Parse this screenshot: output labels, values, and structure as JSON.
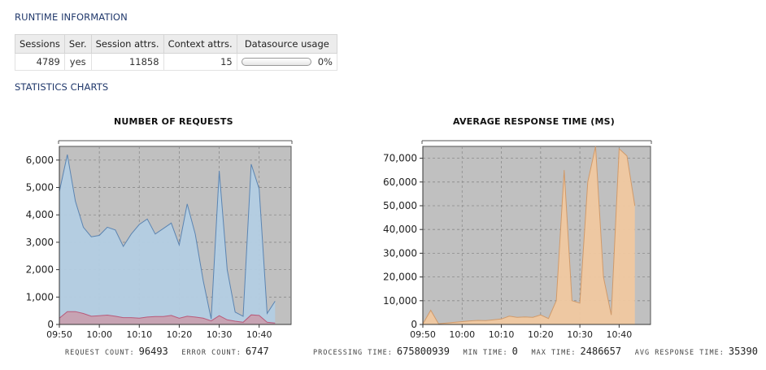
{
  "runtime": {
    "title": "RUNTIME INFORMATION",
    "headers": [
      "Sessions",
      "Ser.",
      "Session attrs.",
      "Context attrs.",
      "Datasource usage"
    ],
    "sessions": "4789",
    "serializable": "yes",
    "session_attrs": "11858",
    "context_attrs": "15",
    "datasource_usage": 0,
    "datasource_usage_label": "0%"
  },
  "statistics": {
    "title": "STATISTICS CHARTS"
  },
  "colors": {
    "section_title": "#20386b",
    "plot_bg": "#c0c0c0",
    "requests_fill": "#b3cde3",
    "requests_line": "#5b84b1",
    "errors_fill": "#c8a0b0",
    "errors_line": "#b85a7a",
    "response_fill": "#f0c8a0",
    "response_line": "#d09a6a"
  },
  "chart_data": [
    {
      "type": "area",
      "title": "NUMBER OF REQUESTS",
      "x_ticks": [
        "09:50",
        "10:00",
        "10:10",
        "10:20",
        "10:30",
        "10:40"
      ],
      "y_ticks": [
        "0",
        "1,000",
        "2,000",
        "3,000",
        "4,000",
        "5,000",
        "6,000"
      ],
      "ylim": [
        0,
        6500
      ],
      "xlim": [
        0,
        58
      ],
      "grid": true,
      "series": [
        {
          "values": [
            [
              0,
              4850
            ],
            [
              2,
              6200
            ],
            [
              4,
              4500
            ],
            [
              6,
              3550
            ],
            [
              8,
              3200
            ],
            [
              10,
              3250
            ],
            [
              12,
              3550
            ],
            [
              14,
              3450
            ],
            [
              16,
              2850
            ],
            [
              18,
              3300
            ],
            [
              20,
              3650
            ],
            [
              22,
              3850
            ],
            [
              24,
              3300
            ],
            [
              26,
              3500
            ],
            [
              28,
              3700
            ],
            [
              30,
              2900
            ],
            [
              32,
              4400
            ],
            [
              34,
              3300
            ],
            [
              36,
              1600
            ],
            [
              38,
              200
            ],
            [
              40,
              5600
            ],
            [
              42,
              2000
            ],
            [
              44,
              450
            ],
            [
              46,
              300
            ],
            [
              48,
              5850
            ],
            [
              50,
              4950
            ],
            [
              52,
              400
            ],
            [
              54,
              850
            ]
          ]
        },
        {
          "values": [
            [
              0,
              230
            ],
            [
              2,
              470
            ],
            [
              4,
              470
            ],
            [
              6,
              400
            ],
            [
              8,
              300
            ],
            [
              10,
              320
            ],
            [
              12,
              340
            ],
            [
              14,
              300
            ],
            [
              16,
              250
            ],
            [
              18,
              250
            ],
            [
              20,
              230
            ],
            [
              22,
              270
            ],
            [
              24,
              290
            ],
            [
              26,
              290
            ],
            [
              28,
              330
            ],
            [
              30,
              230
            ],
            [
              32,
              300
            ],
            [
              34,
              270
            ],
            [
              36,
              230
            ],
            [
              38,
              130
            ],
            [
              40,
              320
            ],
            [
              42,
              170
            ],
            [
              44,
              120
            ],
            [
              46,
              80
            ],
            [
              48,
              350
            ],
            [
              50,
              330
            ],
            [
              52,
              80
            ],
            [
              54,
              50
            ]
          ]
        }
      ],
      "stats": {
        "request_count_label": "REQUEST COUNT:",
        "request_count": "96493",
        "error_count_label": "ERROR COUNT:",
        "error_count": "6747"
      }
    },
    {
      "type": "area",
      "title": "AVERAGE RESPONSE TIME (MS)",
      "x_ticks": [
        "09:50",
        "10:00",
        "10:10",
        "10:20",
        "10:30",
        "10:40"
      ],
      "y_ticks": [
        "0",
        "10,000",
        "20,000",
        "30,000",
        "40,000",
        "50,000",
        "60,000",
        "70,000"
      ],
      "ylim": [
        0,
        75000
      ],
      "xlim": [
        0,
        58
      ],
      "grid": true,
      "series": [
        {
          "values": [
            [
              0,
              200
            ],
            [
              2,
              6000
            ],
            [
              4,
              300
            ],
            [
              6,
              600
            ],
            [
              8,
              900
            ],
            [
              10,
              1200
            ],
            [
              12,
              1500
            ],
            [
              14,
              1700
            ],
            [
              16,
              1600
            ],
            [
              18,
              2000
            ],
            [
              20,
              2300
            ],
            [
              22,
              3500
            ],
            [
              24,
              3000
            ],
            [
              26,
              3200
            ],
            [
              28,
              3000
            ],
            [
              30,
              4000
            ],
            [
              32,
              2500
            ],
            [
              34,
              10000
            ],
            [
              36,
              65000
            ],
            [
              38,
              10000
            ],
            [
              40,
              9000
            ],
            [
              42,
              60000
            ],
            [
              44,
              75000
            ],
            [
              46,
              20000
            ],
            [
              48,
              4000
            ],
            [
              50,
              74000
            ],
            [
              52,
              71000
            ],
            [
              54,
              50000
            ]
          ]
        }
      ],
      "stats": {
        "processing_time_label": "PROCESSING TIME:",
        "processing_time": "675800939",
        "min_time_label": "MIN TIME:",
        "min_time": "0",
        "max_time_label": "MAX TIME:",
        "max_time": "2486657",
        "avg_response_time_label": "AVG RESPONSE TIME:",
        "avg_response_time": "35390"
      }
    }
  ]
}
